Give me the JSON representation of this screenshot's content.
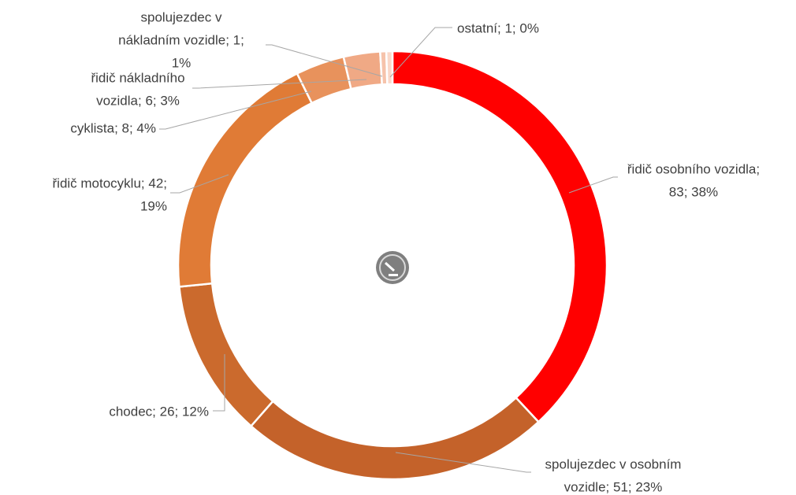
{
  "chart_data": {
    "type": "donut",
    "values": [
      83,
      51,
      26,
      42,
      8,
      6,
      1,
      1
    ],
    "value_labels": [
      [
        "řidič osobního vozidla;",
        "83; 38%"
      ],
      [
        "spolujezdec v osobním",
        "vozidle; 51; 23%"
      ],
      [
        "chodec; 26; 12%"
      ],
      [
        "řidič motocyklu; 42;",
        "19%"
      ],
      [
        "cyklista; 8; 4%"
      ],
      [
        "řidič nákladního",
        "vozidla; 6; 3%"
      ],
      [
        "spolujezdec v",
        "nákladním vozidle; 1;",
        "1%"
      ],
      [
        "ostatní; 1; 0%"
      ]
    ],
    "colors": [
      "#ff0000",
      "#c4622a",
      "#cb6a2d",
      "#e07b36",
      "#e8925c",
      "#f0a985",
      "#f6c3ab",
      "#fad8c9"
    ]
  }
}
